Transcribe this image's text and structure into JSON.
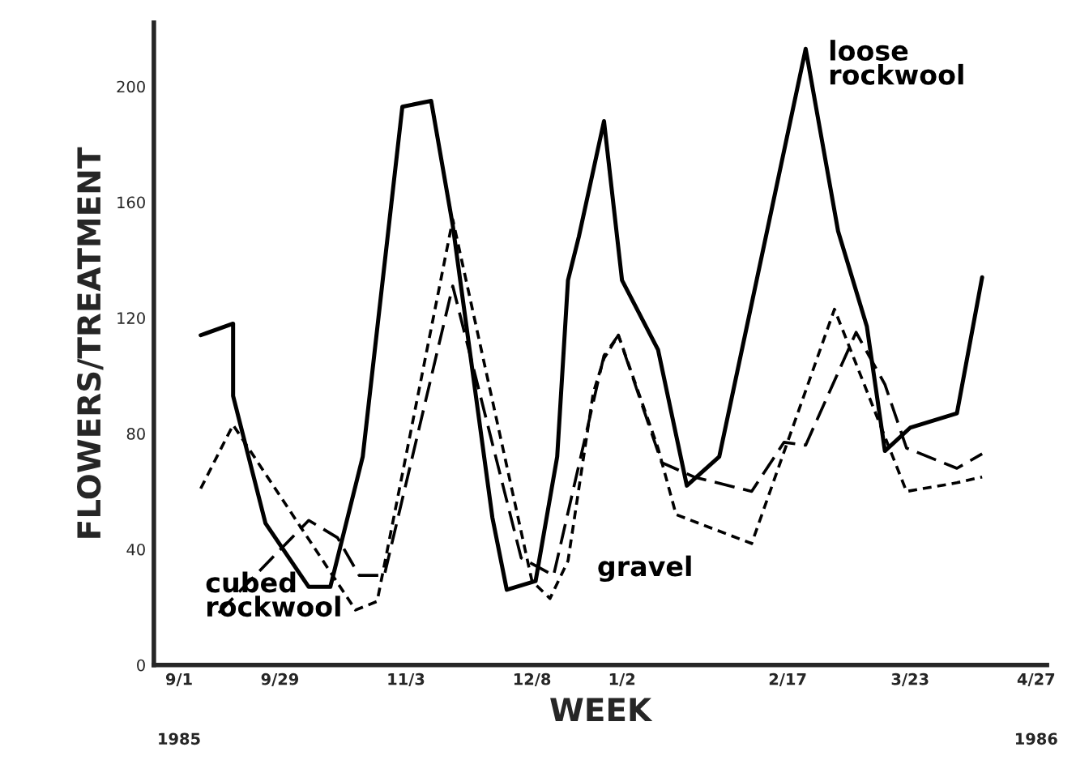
{
  "chart_data": {
    "type": "line",
    "xlabel": "WEEK",
    "ylabel": "FLOWERS/TREATMENT",
    "annotations": [
      "1985",
      "1986"
    ],
    "xlim": [
      "1985-08-25",
      "1986-04-30"
    ],
    "ylim": [
      0,
      222
    ],
    "xticks": [
      {
        "value": "1985-09-01",
        "label": "9/1"
      },
      {
        "value": "1985-09-29",
        "label": "9/29"
      },
      {
        "value": "1985-11-03",
        "label": "11/3"
      },
      {
        "value": "1985-12-08",
        "label": "12/8"
      },
      {
        "value": "1986-01-02",
        "label": "1/2"
      },
      {
        "value": "1986-02-17",
        "label": "2/17"
      },
      {
        "value": "1986-03-23",
        "label": "3/23"
      },
      {
        "value": "1986-04-27",
        "label": "4/27"
      }
    ],
    "yticks": [
      0,
      40,
      80,
      120,
      160,
      200
    ],
    "grid": false,
    "legend": false,
    "marker": "none",
    "series": [
      {
        "name": "loose\nrockwool",
        "color": "#000000",
        "line_style": "solid",
        "x": [
          "1985-09-07",
          "1985-09-16",
          "1985-09-16",
          "1985-09-25",
          "1985-10-07",
          "1985-10-13",
          "1985-10-22",
          "1985-11-02",
          "1985-11-10",
          "1985-11-16",
          "1985-11-27",
          "1985-12-01",
          "1985-12-09",
          "1985-12-15",
          "1985-12-18",
          "1985-12-21",
          "1985-12-28",
          "1986-01-02",
          "1986-01-12",
          "1986-01-20",
          "1986-01-29",
          "1986-02-22",
          "1986-03-03",
          "1986-03-11",
          "1986-03-16",
          "1986-03-23",
          "1986-04-05",
          "1986-04-12"
        ],
        "values": [
          114,
          118,
          93,
          49,
          27,
          27,
          72,
          193,
          195,
          152,
          51,
          26,
          29,
          72,
          133,
          148,
          188,
          133,
          109,
          62,
          72,
          213,
          150,
          117,
          74,
          82,
          87,
          134
        ]
      },
      {
        "name": "cubed\nrockwool",
        "color": "#000000",
        "line_style": "dashed",
        "x": [
          "1985-09-12",
          "1985-10-07",
          "1985-10-15",
          "1985-10-21",
          "1985-10-28",
          "1985-11-16",
          "1985-12-05",
          "1985-12-14",
          "1985-12-28",
          "1986-01-01",
          "1986-01-13",
          "1986-01-22",
          "1986-02-07",
          "1986-02-16",
          "1986-02-22",
          "1986-03-08",
          "1986-03-16",
          "1986-03-22",
          "1986-04-05",
          "1986-04-12"
        ],
        "values": [
          18,
          50,
          44,
          31,
          31,
          131,
          37,
          31,
          107,
          114,
          70,
          65,
          60,
          77,
          76,
          115,
          97,
          75,
          68,
          73
        ]
      },
      {
        "name": "gravel",
        "color": "#000000",
        "line_style": "dotted",
        "x": [
          "1985-09-07",
          "1985-09-16",
          "1985-10-20",
          "1985-10-26",
          "1985-11-16",
          "1985-12-08",
          "1985-12-13",
          "1985-12-18",
          "1985-12-25",
          "1985-12-28",
          "1986-01-01",
          "1986-01-12",
          "1986-01-17",
          "1986-02-07",
          "1986-03-02",
          "1986-03-22",
          "1986-04-05",
          "1986-04-12"
        ],
        "values": [
          61,
          83,
          19,
          22,
          154,
          29,
          23,
          36,
          94,
          106,
          114,
          75,
          52,
          42,
          123,
          60,
          63,
          65
        ]
      }
    ]
  }
}
